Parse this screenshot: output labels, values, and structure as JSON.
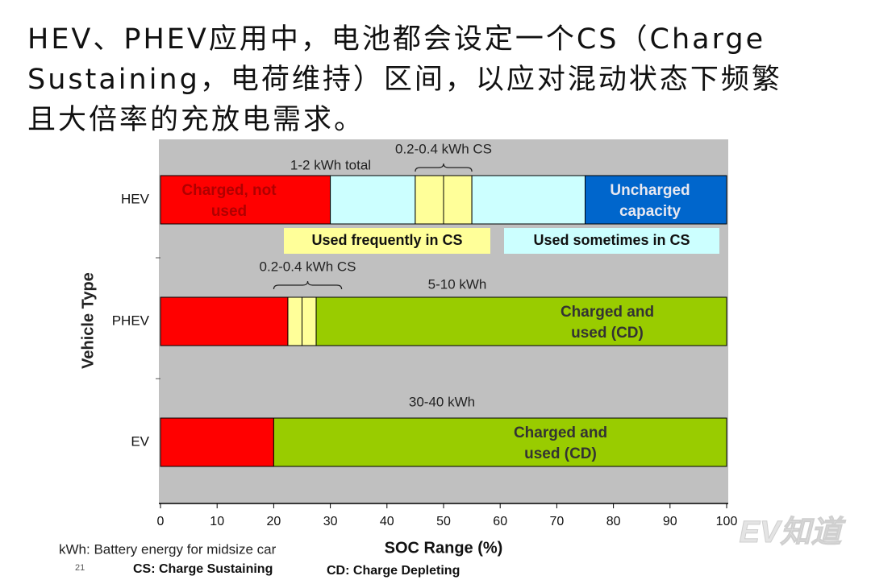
{
  "heading": [
    "HEV、PHEV应用中，电池都会设定一个CS（Charge",
    "Sustaining，电荷维持）区间，以应对混动状态下频繁",
    "且大倍率的充放电需求。"
  ],
  "chart_data": {
    "type": "range-bar",
    "ylabel": "Vehicle Type",
    "xlabel": "SOC Range (%)",
    "xlim": [
      0,
      100
    ],
    "xticks": [
      0,
      10,
      20,
      30,
      40,
      50,
      60,
      70,
      80,
      90,
      100
    ],
    "categories": [
      "HEV",
      "PHEV",
      "EV"
    ],
    "rows": [
      {
        "segments": [
          {
            "range": [
              0,
              30
            ],
            "color": "#ff0000",
            "text_color": "#b00000",
            "label": [
              "Charged, not",
              "used"
            ]
          },
          {
            "range": [
              30,
              45
            ],
            "color": "#ccffff"
          },
          {
            "range": [
              45,
              50
            ],
            "color": "#ffff99"
          },
          {
            "range": [
              50,
              55
            ],
            "color": "#ffff99"
          },
          {
            "range": [
              55,
              75
            ],
            "color": "#ccffff"
          },
          {
            "range": [
              75,
              100
            ],
            "color": "#0066cc",
            "text_color": "#e8e8f0",
            "label": [
              "Uncharged",
              "capacity"
            ]
          }
        ],
        "annotations": [
          {
            "text": "1-2 kWh total"
          },
          {
            "text": "0.2-0.4 kWh CS",
            "span": [
              45,
              55
            ]
          }
        ]
      },
      {
        "segments": [
          {
            "range": [
              0,
              22.5
            ],
            "color": "#ff0000"
          },
          {
            "range": [
              22.5,
              25
            ],
            "color": "#ffff99"
          },
          {
            "range": [
              25,
              27.5
            ],
            "color": "#ffff99"
          },
          {
            "range": [
              27.5,
              100
            ],
            "color": "#99cc00",
            "text_color": "#333333",
            "label": [
              "Charged and",
              "used (CD)"
            ]
          }
        ],
        "annotations": [
          {
            "text": "0.2-0.4 kWh CS",
            "span": [
              20,
              32
            ]
          },
          {
            "text": "5-10 kWh"
          }
        ]
      },
      {
        "segments": [
          {
            "range": [
              0,
              20
            ],
            "color": "#ff0000"
          },
          {
            "range": [
              20,
              100
            ],
            "color": "#99cc00",
            "text_color": "#333333",
            "label": [
              "Charged and",
              "used (CD)"
            ]
          }
        ],
        "annotations": [
          {
            "text": "30-40 kWh"
          }
        ]
      }
    ],
    "legend": [
      {
        "label": "Used frequently in CS",
        "color": "#ffff99"
      },
      {
        "label": "Used sometimes in CS",
        "color": "#ccffff"
      }
    ]
  },
  "footnotes": {
    "kwh": "kWh: Battery energy for midsize car",
    "page": "21",
    "cs": "CS: Charge Sustaining",
    "cd": "CD: Charge Depleting"
  },
  "watermark": "EV知道"
}
